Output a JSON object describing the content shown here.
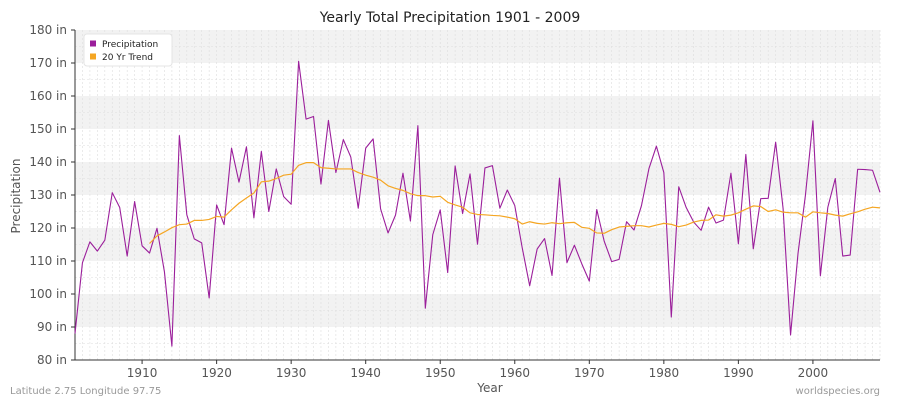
{
  "chart_data": {
    "type": "line",
    "title": "Yearly Total Precipitation 1901 - 2009",
    "xlabel": "Year",
    "ylabel": "Precipitation",
    "xlim": [
      1901,
      2009
    ],
    "ylim": [
      80,
      180
    ],
    "x_ticks": [
      1910,
      1920,
      1930,
      1940,
      1950,
      1960,
      1970,
      1980,
      1990,
      2000
    ],
    "y_ticks": [
      80,
      90,
      100,
      110,
      120,
      130,
      140,
      150,
      160,
      170,
      180
    ],
    "y_tick_labels": [
      "80 in",
      "90 in",
      "100 in",
      "110 in",
      "120 in",
      "130 in",
      "140 in",
      "150 in",
      "160 in",
      "170 in",
      "180 in"
    ],
    "grid": true,
    "legend_position": "top-left",
    "colors": {
      "precipitation": "#9b1f9b",
      "trend": "#f5a623",
      "band": "#f2f2f2",
      "grid": "#dddddd"
    },
    "series": [
      {
        "name": "Precipitation",
        "x_start": 1901,
        "values": [
          88,
          109.5,
          115.8,
          113,
          116.3,
          130.7,
          126.2,
          111.5,
          128,
          114.6,
          112.4,
          119.9,
          106.7,
          84.2,
          148,
          124,
          116.7,
          115.5,
          98.8,
          127,
          121,
          144.2,
          133.9,
          144.6,
          123.1,
          143.2,
          125,
          137.9,
          129.5,
          127.2,
          170.5,
          153,
          153.8,
          133.3,
          152.6,
          136.8,
          146.8,
          141.5,
          126,
          144.2,
          147,
          125.8,
          118.5,
          123.9,
          136.6,
          122.1,
          151,
          95.7,
          118,
          125.5,
          106.5,
          138.8,
          124.4,
          136.4,
          115.1,
          138.2,
          138.9,
          126,
          131.5,
          126.8,
          114,
          102.5,
          113.6,
          116.8,
          105.6,
          135.1,
          109.5,
          114.8,
          109.1,
          103.9,
          125.6,
          116,
          109.8,
          110.5,
          121.9,
          119.4,
          126.8,
          138,
          144.8,
          136.8,
          93,
          132.5,
          126.2,
          121.8,
          119.3,
          126.3,
          121.5,
          122.4,
          136.6,
          115.2,
          142.3,
          113.7,
          128.9,
          129,
          146,
          125.9,
          87.6,
          112.3,
          130,
          152.5,
          105.5,
          126.3,
          135,
          111.5,
          111.8,
          137.8,
          137.7,
          137.5,
          130.8
        ]
      },
      {
        "name": "20 Yr Trend",
        "x_start": 1911,
        "values": [
          115.3,
          117.6,
          118.8,
          120.1,
          121,
          121.2,
          122.3,
          122.3,
          122.6,
          123.5,
          123.3,
          125.5,
          127.5,
          129.1,
          130.6,
          134,
          134.2,
          135,
          136,
          136.3,
          139,
          139.8,
          139.8,
          138.3,
          138.1,
          137.9,
          137.9,
          137.9,
          136.8,
          136,
          135.4,
          134.5,
          132.8,
          132,
          131.4,
          130.4,
          129.8,
          129.8,
          129.4,
          129.6,
          127.8,
          127,
          126.3,
          124.6,
          124.1,
          124,
          123.8,
          123.7,
          123.3,
          122.8,
          121.2,
          121.9,
          121.4,
          121.2,
          121.6,
          121.3,
          121.6,
          121.7,
          120.2,
          119.9,
          118.5,
          118.4,
          119.5,
          120.3,
          120.5,
          120.7,
          120.7,
          120.3,
          120.9,
          121.4,
          121.1,
          120.4,
          120.9,
          121.8,
          122.3,
          122.4,
          124,
          123.6,
          123.9,
          124.6,
          125.7,
          126.7,
          126.5,
          125,
          125.5,
          124.8,
          124.6,
          124.6,
          123.3,
          124.9,
          124.6,
          124.4,
          123.9,
          123.6,
          124.3,
          124.9,
          125.7,
          126.3,
          126.1
        ]
      }
    ]
  },
  "footer": {
    "location": "Latitude 2.75 Longitude 97.75",
    "source": "worldspecies.org"
  }
}
